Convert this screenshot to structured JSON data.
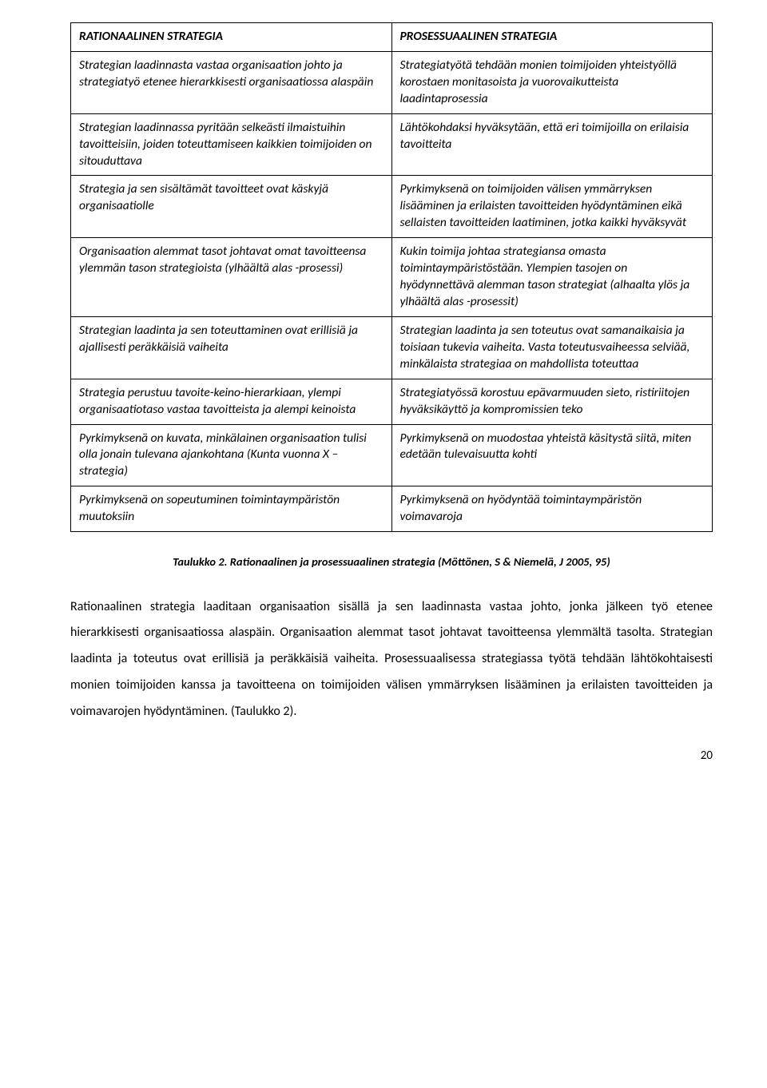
{
  "table": {
    "header_left": "RATIONAALINEN STRATEGIA",
    "header_right": "PROSESSUAALINEN STRATEGIA",
    "rows": [
      {
        "left": "Strategian laadinnasta vastaa organisaation johto ja strategiatyö etenee hierarkkisesti organisaatiossa alaspäin",
        "right": "Strategiatyötä tehdään monien toimijoiden yhteistyöllä korostaen monitasoista ja vuorovaikutteista laadintaprosessia"
      },
      {
        "left": "Strategian laadinnassa pyritään selkeästi ilmaistuihin tavoitteisiin, joiden toteuttamiseen kaikkien toimijoiden on sitouduttava",
        "right": "Lähtökohdaksi hyväksytään, että eri toimijoilla on erilaisia tavoitteita"
      },
      {
        "left": "Strategia ja sen sisältämät tavoitteet ovat käskyjä organisaatiolle",
        "right": "Pyrkimyksenä on toimijoiden välisen ymmärryksen lisääminen ja erilaisten tavoitteiden hyödyntäminen eikä sellaisten tavoitteiden laatiminen, jotka kaikki hyväksyvät"
      },
      {
        "left": "Organisaation alemmat tasot johtavat omat tavoitteensa ylemmän tason strategioista (ylhäältä alas -prosessi)",
        "right": "Kukin toimija johtaa strategiansa omasta toimintaympäristöstään. Ylempien tasojen on hyödynnettävä alemman tason strategiat (alhaalta ylös ja ylhäältä alas -prosessit)"
      },
      {
        "left": "Strategian laadinta ja sen toteuttaminen ovat erillisiä ja ajallisesti peräkkäisiä vaiheita",
        "right": "Strategian laadinta ja sen toteutus ovat samanaikaisia ja toisiaan tukevia vaiheita. Vasta toteutusvaiheessa selviää, minkälaista strategiaa on mahdollista toteuttaa"
      },
      {
        "left": "Strategia perustuu tavoite-keino-hierarkiaan, ylempi organisaatiotaso vastaa tavoitteista ja alempi keinoista",
        "right": "Strategiatyössä korostuu epävarmuuden sieto, ristiriitojen hyväksikäyttö ja kompromissien teko"
      },
      {
        "left": "Pyrkimyksenä on kuvata, minkälainen organisaation tulisi olla jonain tulevana ajankohtana (Kunta vuonna X – strategia)",
        "right": "Pyrkimyksenä on muodostaa yhteistä käsitystä siitä, miten edetään tulevaisuutta kohti"
      },
      {
        "left": "Pyrkimyksenä on sopeutuminen toimintaympäristön muutoksiin",
        "right": "Pyrkimyksenä on hyödyntää toimintaympäristön voimavaroja"
      }
    ]
  },
  "caption": "Taulukko 2. Rationaalinen ja prosessuaalinen strategia (Möttönen, S & Niemelä, J 2005, 95)",
  "body": "Rationaalinen strategia laaditaan organisaation sisällä ja sen laadinnasta vastaa johto, jonka jälkeen työ etenee hierarkkisesti organisaatiossa alaspäin. Organisaation alemmat tasot johtavat tavoitteensa ylemmältä tasolta. Strategian laadinta ja toteutus ovat erillisiä ja peräkkäisiä vaiheita. Prosessuaalisessa strategiassa työtä tehdään lähtökohtaisesti monien toimijoiden kanssa ja tavoitteena on toimijoiden välisen ymmärryksen lisääminen ja erilaisten tavoitteiden ja voimavarojen hyödyntäminen. (Taulukko 2).",
  "page_number": "20"
}
